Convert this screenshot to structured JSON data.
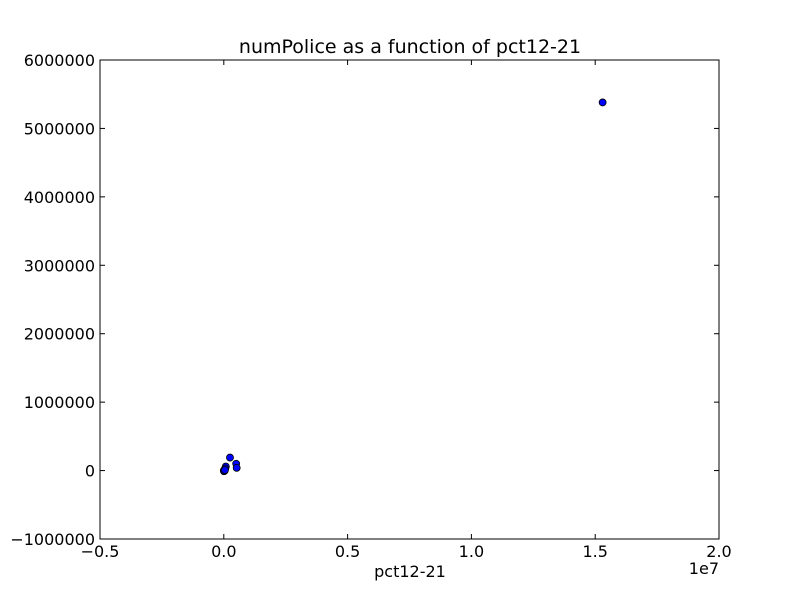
{
  "chart_data": {
    "type": "scatter",
    "title": "numPolice as a function of pct12-21",
    "xlabel": "pct12-21",
    "ylabel": "",
    "x_offset_label": "1e7",
    "xlim": [
      -5000000,
      20000000
    ],
    "ylim": [
      -1000000,
      6000000
    ],
    "x_ticks": [
      -5000000,
      0,
      5000000,
      10000000,
      15000000,
      20000000
    ],
    "x_tick_labels": [
      "−0.5",
      "0.0",
      "0.5",
      "1.0",
      "1.5",
      "2.0"
    ],
    "y_ticks": [
      -1000000,
      0,
      1000000,
      2000000,
      3000000,
      4000000,
      5000000,
      6000000
    ],
    "y_tick_labels": [
      "−1000000",
      "0",
      "1000000",
      "2000000",
      "3000000",
      "4000000",
      "5000000",
      "6000000"
    ],
    "grid": false,
    "marker_color": "#0000ff",
    "points": [
      {
        "x": 15300000,
        "y": 5380000
      },
      {
        "x": 250000,
        "y": 190000
      },
      {
        "x": 500000,
        "y": 100000
      },
      {
        "x": 520000,
        "y": 40000
      },
      {
        "x": 80000,
        "y": 60000
      },
      {
        "x": 40000,
        "y": 20000
      },
      {
        "x": 20000,
        "y": 10000
      },
      {
        "x": 10000,
        "y": 5000
      },
      {
        "x": 5000,
        "y": -10000
      },
      {
        "x": 30000,
        "y": -5000
      },
      {
        "x": 60000,
        "y": 30000
      },
      {
        "x": 15000,
        "y": 2000
      },
      {
        "x": 8000,
        "y": -2000
      },
      {
        "x": 45000,
        "y": 8000
      }
    ]
  }
}
